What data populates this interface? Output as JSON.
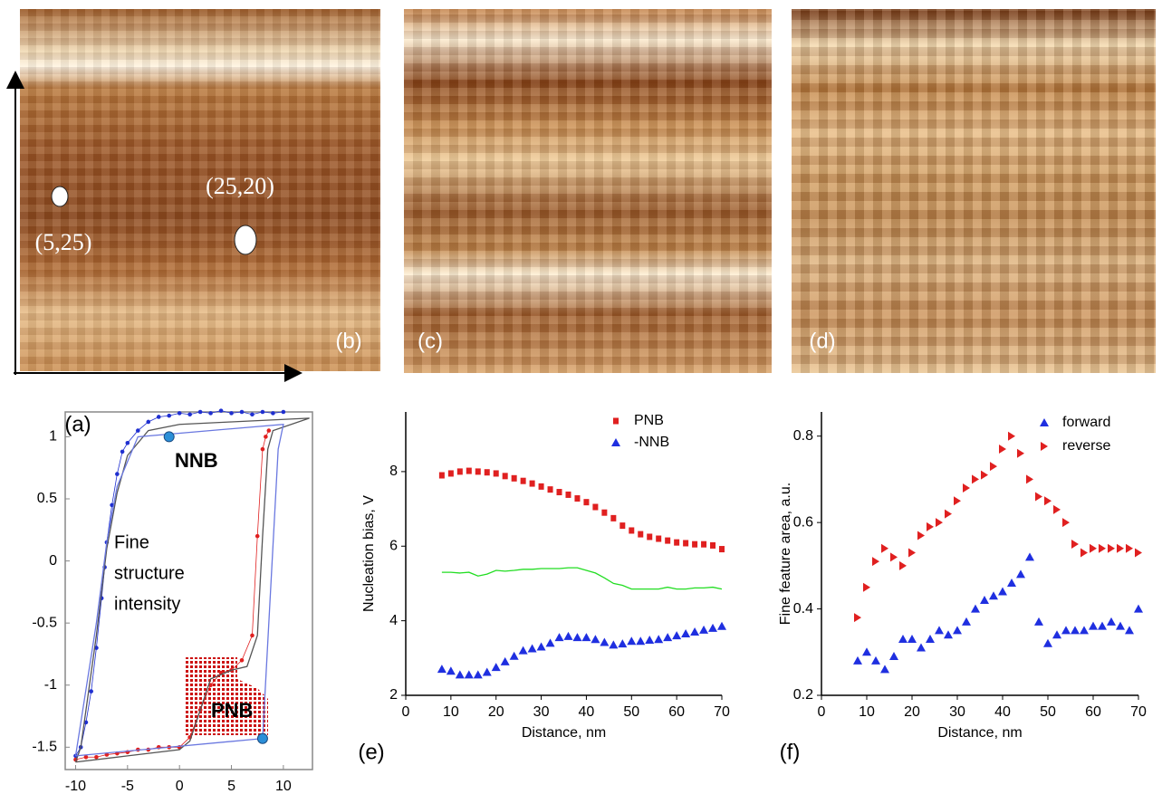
{
  "panels": [
    {
      "label": "(b)",
      "annotations": [
        "(25,20)",
        "(5,25)"
      ]
    },
    {
      "label": "(c)"
    },
    {
      "label": "(d)"
    }
  ],
  "chart_data": [
    {
      "type": "line",
      "label": "(a)",
      "annotations": [
        "NNB",
        "Fine",
        "structure",
        "intensity",
        "PNB"
      ],
      "xlim": [
        -11,
        12.8
      ],
      "xticks": [
        -10,
        -5,
        0,
        5,
        10
      ],
      "ylim": [
        -1.68,
        1.2
      ],
      "yticks": [
        1,
        0.5,
        0,
        -0.5,
        -1,
        -1.5
      ],
      "series": [
        {
          "color": "#1f2fd0",
          "marker": "circle",
          "line": true,
          "x": [
            10,
            9,
            8,
            7,
            6,
            5,
            4,
            3,
            2,
            1,
            0,
            -1,
            -2,
            -3,
            -4,
            -5,
            -5.5,
            -6,
            -6.5,
            -7,
            -7.2,
            -7.5,
            -8,
            -8.5,
            -9,
            -9.5,
            -10
          ],
          "values": [
            1.2,
            1.19,
            1.2,
            1.18,
            1.2,
            1.19,
            1.21,
            1.19,
            1.2,
            1.18,
            1.19,
            1.17,
            1.16,
            1.12,
            1.05,
            0.95,
            0.88,
            0.7,
            0.45,
            0.15,
            -0.05,
            -0.3,
            -0.7,
            -1.05,
            -1.3,
            -1.5,
            -1.57
          ]
        },
        {
          "color": "#e02020",
          "marker": "circle",
          "line": true,
          "x": [
            -10,
            -9,
            -8,
            -7,
            -6,
            -5,
            -4,
            -3,
            -2,
            -1,
            0,
            1,
            2,
            3,
            4,
            5,
            6,
            7,
            7.5,
            8,
            8.3,
            8.6
          ],
          "values": [
            -1.6,
            -1.58,
            -1.58,
            -1.56,
            -1.55,
            -1.54,
            -1.52,
            -1.52,
            -1.5,
            -1.5,
            -1.5,
            -1.42,
            -1.2,
            -1.0,
            -0.9,
            -0.88,
            -0.8,
            -0.6,
            0.2,
            0.9,
            1.0,
            1.05
          ]
        },
        {
          "color": "#555555",
          "marker": "none",
          "line": true,
          "x": [
            -10,
            -5,
            0,
            1,
            2,
            3,
            5,
            6.5,
            7.5,
            8,
            8.5,
            9,
            12.5,
            5,
            0,
            -3,
            -5,
            -6,
            -7,
            -8,
            -9.5,
            -10
          ],
          "values": [
            -1.62,
            -1.57,
            -1.52,
            -1.45,
            -1.2,
            -0.95,
            -0.88,
            -0.85,
            -0.6,
            0.2,
            0.9,
            1.05,
            1.15,
            1.12,
            1.1,
            1.05,
            0.85,
            0.55,
            0.1,
            -0.6,
            -1.5,
            -1.62
          ]
        },
        {
          "color": "#6a78e0",
          "marker": "none",
          "line": true,
          "x": [
            -10,
            8,
            9.5,
            10,
            -4,
            -6,
            -7,
            -8,
            -10
          ],
          "values": [
            -1.57,
            -1.43,
            0.9,
            1.1,
            1.0,
            0.6,
            0.15,
            -0.5,
            -1.57
          ]
        },
        {
          "color": "#2b8fd8",
          "marker": "bigcircle",
          "line": false,
          "x": [
            -1,
            8
          ],
          "values": [
            1.0,
            -1.43
          ]
        }
      ]
    },
    {
      "type": "scatter",
      "label": "(e)",
      "xlabel": "Distance, nm",
      "ylabel": "Nucleation bias, V",
      "xlim": [
        0,
        70
      ],
      "xticks": [
        0,
        10,
        20,
        30,
        40,
        50,
        60,
        70
      ],
      "ylim": [
        2,
        9.6
      ],
      "yticks": [
        2,
        4,
        6,
        8
      ],
      "x": [
        8,
        10,
        12,
        14,
        16,
        18,
        20,
        22,
        24,
        26,
        28,
        30,
        32,
        34,
        36,
        38,
        40,
        42,
        44,
        46,
        48,
        50,
        52,
        54,
        56,
        58,
        60,
        62,
        64,
        66,
        68,
        70
      ],
      "series": [
        {
          "name": "PNB",
          "color": "#e02020",
          "marker": "square",
          "line": false,
          "values": [
            7.9,
            7.95,
            8.0,
            8.02,
            8.0,
            7.98,
            7.95,
            7.88,
            7.82,
            7.75,
            7.68,
            7.6,
            7.52,
            7.45,
            7.38,
            7.28,
            7.18,
            7.05,
            6.9,
            6.75,
            6.55,
            6.42,
            6.32,
            6.25,
            6.2,
            6.15,
            6.1,
            6.08,
            6.05,
            6.05,
            6.02,
            5.92
          ]
        },
        {
          "name": "-NNB",
          "color": "#1f2fe0",
          "marker": "triangle",
          "line": false,
          "values": [
            2.7,
            2.65,
            2.55,
            2.55,
            2.55,
            2.62,
            2.75,
            2.9,
            3.05,
            3.2,
            3.25,
            3.3,
            3.4,
            3.55,
            3.58,
            3.55,
            3.55,
            3.5,
            3.42,
            3.35,
            3.38,
            3.45,
            3.45,
            3.48,
            3.5,
            3.55,
            3.6,
            3.65,
            3.7,
            3.75,
            3.8,
            3.85
          ]
        },
        {
          "color": "#22dd22",
          "marker": "none",
          "line": true,
          "values": [
            5.3,
            5.3,
            5.28,
            5.3,
            5.2,
            5.25,
            5.35,
            5.33,
            5.35,
            5.38,
            5.38,
            5.4,
            5.4,
            5.4,
            5.42,
            5.42,
            5.35,
            5.28,
            5.15,
            5.0,
            4.95,
            4.85,
            4.85,
            4.85,
            4.85,
            4.9,
            4.85,
            4.85,
            4.88,
            4.88,
            4.9,
            4.85
          ]
        }
      ]
    },
    {
      "type": "scatter",
      "label": "(f)",
      "xlabel": "Distance, nm",
      "ylabel": "Fine feature area, a.u.",
      "xlim": [
        0,
        70
      ],
      "xticks": [
        0,
        10,
        20,
        30,
        40,
        50,
        60,
        70
      ],
      "ylim": [
        0.2,
        0.856
      ],
      "yticks": [
        0.2,
        0.4,
        0.6,
        0.8
      ],
      "x": [
        8,
        10,
        12,
        14,
        16,
        18,
        20,
        22,
        24,
        26,
        28,
        30,
        32,
        34,
        36,
        38,
        40,
        42,
        44,
        46,
        48,
        50,
        52,
        54,
        56,
        58,
        60,
        62,
        64,
        66,
        68,
        70
      ],
      "series": [
        {
          "name": "forward",
          "color": "#1f2fe0",
          "marker": "triangle",
          "line": false,
          "values": [
            0.28,
            0.3,
            0.28,
            0.26,
            0.29,
            0.33,
            0.33,
            0.31,
            0.33,
            0.35,
            0.34,
            0.35,
            0.37,
            0.4,
            0.42,
            0.43,
            0.44,
            0.46,
            0.48,
            0.52,
            0.37,
            0.32,
            0.34,
            0.35,
            0.35,
            0.35,
            0.36,
            0.36,
            0.37,
            0.36,
            0.35,
            0.4
          ]
        },
        {
          "name": "reverse",
          "color": "#e02020",
          "marker": "wedge",
          "line": false,
          "values": [
            0.38,
            0.45,
            0.51,
            0.54,
            0.52,
            0.5,
            0.53,
            0.57,
            0.59,
            0.6,
            0.62,
            0.65,
            0.68,
            0.7,
            0.71,
            0.73,
            0.77,
            0.8,
            0.76,
            0.7,
            0.66,
            0.65,
            0.63,
            0.6,
            0.55,
            0.53,
            0.54,
            0.54,
            0.54,
            0.54,
            0.54,
            0.53
          ]
        }
      ]
    }
  ]
}
